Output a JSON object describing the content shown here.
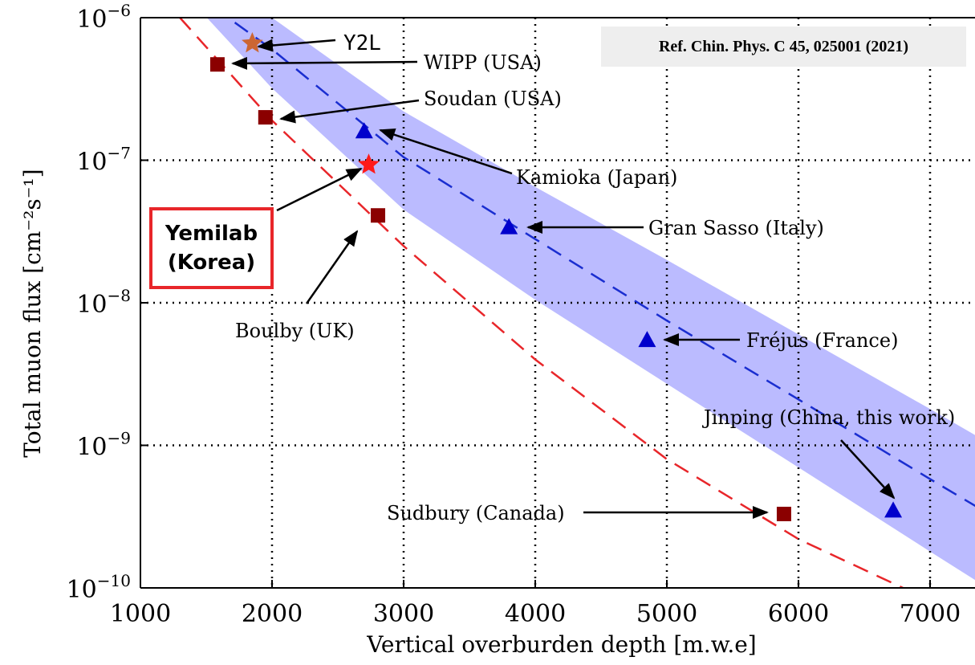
{
  "chart_data": {
    "type": "scatter",
    "xlabel": "Vertical overburden depth [m.w.e]",
    "ylabel": "Total muon flux [cm⁻²s⁻¹]",
    "xlim": [
      1000,
      7400
    ],
    "ylim": [
      1e-10,
      1e-06
    ],
    "yscale": "log",
    "grid": true,
    "x_ticks": [
      "1000",
      "2000",
      "3000",
      "4000",
      "5000",
      "6000",
      "7000"
    ],
    "y_ticks": [
      {
        "base": "10",
        "exp": "−10"
      },
      {
        "base": "10",
        "exp": "−9"
      },
      {
        "base": "10",
        "exp": "−8"
      },
      {
        "base": "10",
        "exp": "−7"
      },
      {
        "base": "10",
        "exp": "−6"
      }
    ],
    "series": [
      {
        "marker": "square",
        "color": "#8b0000",
        "points": [
          {
            "x": 1585,
            "y": 4.7e-07,
            "label": "WIPP (USA)"
          },
          {
            "x": 1950,
            "y": 2e-07,
            "label": "Soudan (USA)"
          },
          {
            "x": 2805,
            "y": 4.1e-08,
            "label": "Boulby (UK)"
          },
          {
            "x": 5890,
            "y": 3.3e-10,
            "label": "Sudbury (Canada)"
          }
        ]
      },
      {
        "marker": "triangle",
        "color": "#0000cc",
        "points": [
          {
            "x": 2700,
            "y": 1.6e-07,
            "label": "Kamioka (Japan)"
          },
          {
            "x": 3800,
            "y": 3.4e-08,
            "label": "Gran Sasso (Italy)"
          },
          {
            "x": 4850,
            "y": 5.5e-09,
            "label": "Fréjus (France)"
          },
          {
            "x": 6720,
            "y": 3.5e-10,
            "label": "Jinping (China, this work)"
          }
        ]
      },
      {
        "marker": "star",
        "color": "#cc6633",
        "points": [
          {
            "x": 1850,
            "y": 6.6e-07,
            "label": "Y2L"
          }
        ]
      },
      {
        "marker": "star",
        "color": "#ff1a1a",
        "points": [
          {
            "x": 2735,
            "y": 9.3e-08,
            "label": "Yemilab"
          }
        ]
      }
    ],
    "fit_lines": [
      {
        "style": "dashed",
        "color": "#1a2ed0",
        "points": [
          [
            1400,
            1.5e-06
          ],
          [
            2000,
            6e-07
          ],
          [
            3000,
            1.05e-07
          ],
          [
            4000,
            2.8e-08
          ],
          [
            5000,
            7.5e-09
          ],
          [
            6000,
            2.1e-09
          ],
          [
            7000,
            5.8e-10
          ],
          [
            7400,
            3.5e-10
          ]
        ]
      },
      {
        "style": "dashed",
        "color": "#e8262a",
        "points": [
          [
            1300,
            1e-06
          ],
          [
            2000,
            1.9e-07
          ],
          [
            3000,
            2.5e-08
          ],
          [
            4000,
            4e-09
          ],
          [
            5000,
            8e-10
          ],
          [
            6000,
            2.2e-10
          ],
          [
            6900,
            9e-11
          ]
        ]
      }
    ],
    "band": {
      "color": "#b4b4ff",
      "upper": [
        [
          1550,
          1.6e-06
        ],
        [
          2000,
          1e-06
        ],
        [
          3000,
          2.2e-07
        ],
        [
          4000,
          6.5e-08
        ],
        [
          5000,
          2e-08
        ],
        [
          6000,
          6e-09
        ],
        [
          7000,
          1.8e-09
        ],
        [
          7400,
          1.1e-09
        ]
      ],
      "lower": [
        [
          1300,
          1.6e-06
        ],
        [
          2000,
          3.2e-07
        ],
        [
          3000,
          4.5e-08
        ],
        [
          4000,
          1.05e-08
        ],
        [
          5000,
          2.7e-09
        ],
        [
          6000,
          7e-10
        ],
        [
          7000,
          1.8e-10
        ],
        [
          7400,
          1.05e-10
        ]
      ]
    }
  },
  "labels": {
    "y2l": "Y2L",
    "wipp": "WIPP (USA)",
    "soudan": "Soudan (USA)",
    "kamioka": "Kamioka (Japan)",
    "gran_sasso": "Gran Sasso (Italy)",
    "boulby": "Boulby (UK)",
    "frejus": "Fréjus (France)",
    "jinping": "Jinping (China, this work)",
    "sudbury": "Sudbury (Canada)"
  },
  "reference": "Ref. Chin. Phys. C 45, 025001 (2021)",
  "yemilab_box": {
    "line1": "Yemilab",
    "line2": "(Korea)"
  }
}
